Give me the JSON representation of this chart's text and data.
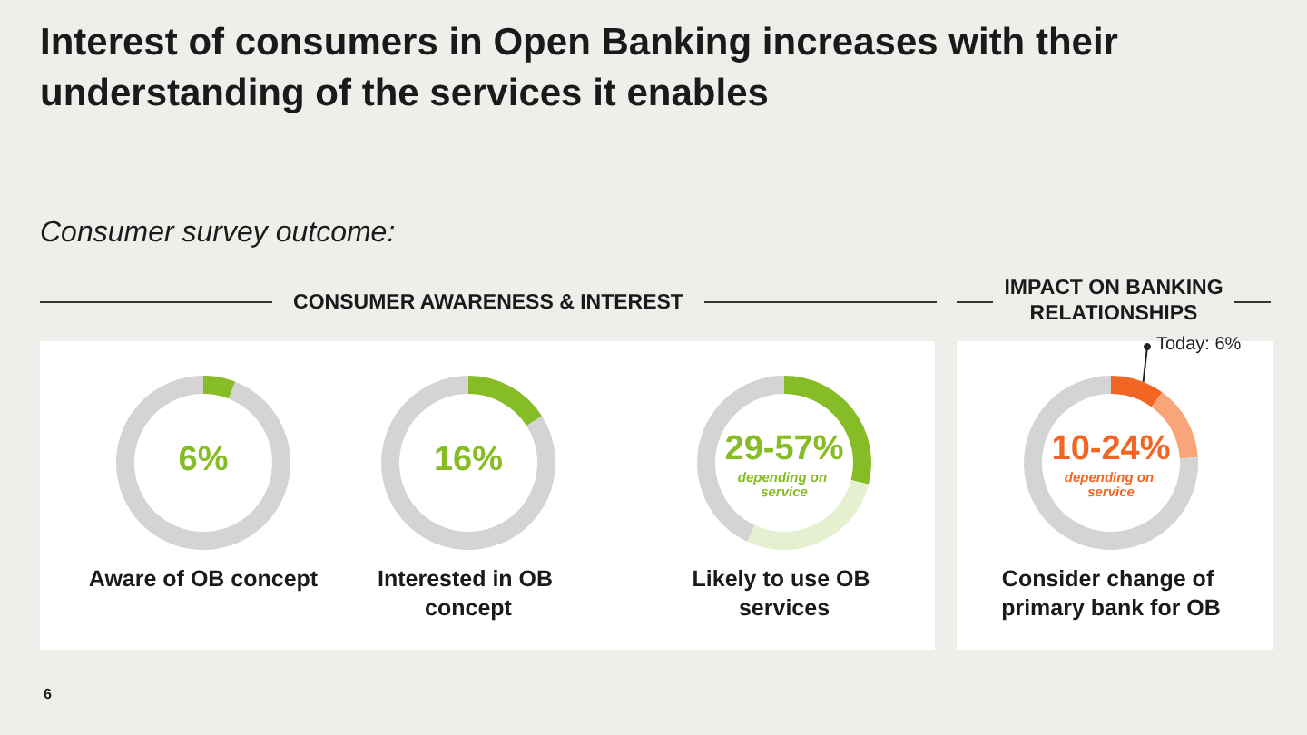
{
  "chart_data": [
    {
      "type": "donut",
      "title": "Interest of consumers in Open Banking increases with their understanding of the services it enables",
      "subtitle": "Consumer survey outcome:",
      "categories": [
        null,
        null
      ],
      "values": [
        6,
        94
      ],
      "colors": [
        "#86bc25",
        "#d4d4d4"
      ],
      "xlabel": "Aware of OB concept",
      "annotations": [
        "6%",
        "6"
      ]
    },
    {
      "type": "donut",
      "title": "CONSUMER AWARENESS & INTEREST",
      "categories": [
        null,
        null
      ],
      "values": [
        16,
        84
      ],
      "colors": [
        "#86bc25",
        "#d4d4d4"
      ],
      "xlabel": "Interested in OB concept",
      "annotations": [
        "16%"
      ]
    },
    {
      "type": "donut",
      "categories": [
        null,
        null,
        null
      ],
      "values": [
        29,
        28,
        43
      ],
      "colors": [
        "#86bc25",
        "#e5f0d0",
        "#d4d4d4"
      ],
      "xlabel": "Likely to use OB services",
      "annotations": [
        "29-57%",
        "depending on service"
      ]
    },
    {
      "type": "donut",
      "title": "IMPACT ON BANKING RELATIONSHIPS",
      "categories": [
        null,
        null,
        null
      ],
      "values": [
        10,
        14,
        76
      ],
      "colors": [
        "#f26522",
        "#f8a57a",
        "#d4d4d4"
      ],
      "xlabel": "Consider change of primary bank for OB",
      "annotations": [
        "10-24%",
        "depending on service",
        "Today: 6%"
      ]
    }
  ]
}
